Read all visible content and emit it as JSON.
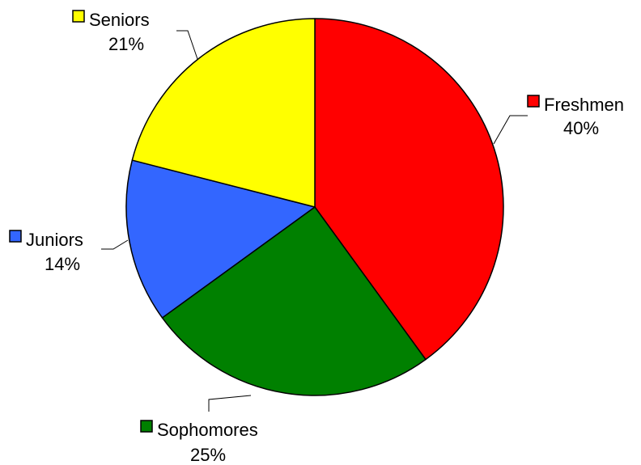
{
  "chart_data": {
    "type": "pie",
    "title": "",
    "categories": [
      "Freshmen",
      "Sophomores",
      "Juniors",
      "Seniors"
    ],
    "values": [
      40,
      25,
      14,
      21
    ],
    "value_labels": [
      "40%",
      "25%",
      "14%",
      "21%"
    ],
    "colors": [
      "#ff0000",
      "#008000",
      "#3366ff",
      "#ffff00"
    ],
    "start_angle_deg": 0,
    "direction": "clockwise",
    "leader_lines": true
  }
}
